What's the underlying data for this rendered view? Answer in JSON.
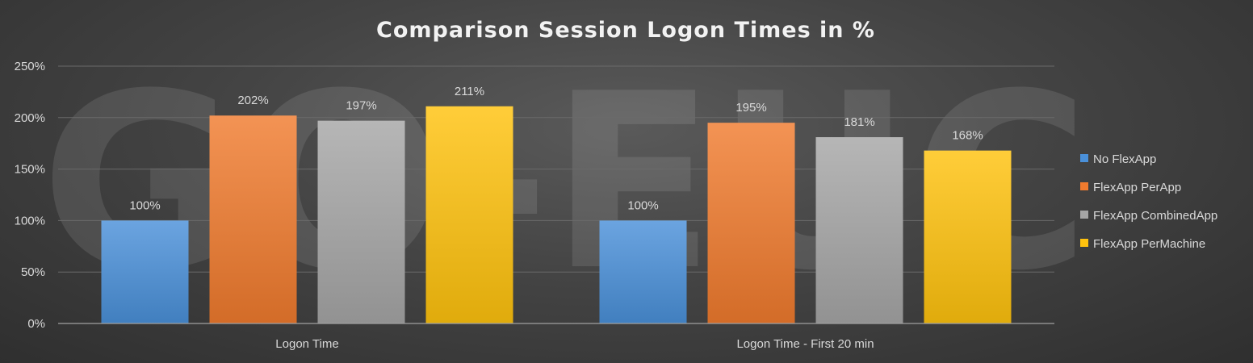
{
  "chart_data": {
    "type": "bar",
    "title": "Comparison Session Logon Times in %",
    "categories": [
      "Logon Time",
      "Logon Time - First 20 min"
    ],
    "series": [
      {
        "name": "No FlexApp",
        "values": [
          100,
          100
        ],
        "color": "#4a90d9"
      },
      {
        "name": "FlexApp PerApp",
        "values": [
          202,
          195
        ],
        "color": "#f07b2e"
      },
      {
        "name": "FlexApp CombinedApp",
        "values": [
          197,
          181
        ],
        "color": "#a6a6a6"
      },
      {
        "name": "FlexApp PerMachine",
        "values": [
          211,
          168
        ],
        "color": "#ffc20e"
      }
    ],
    "value_suffix": "%",
    "ylim": [
      0,
      250
    ],
    "yticks": [
      0,
      50,
      100,
      150,
      200,
      250
    ],
    "grid": true,
    "legend_position": "right",
    "watermark": "GO-EUC"
  }
}
